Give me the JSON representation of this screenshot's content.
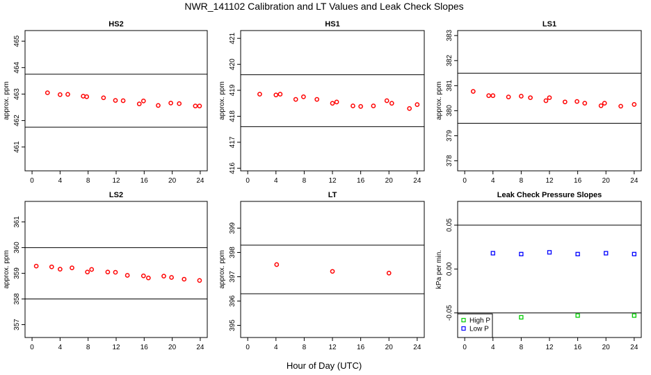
{
  "title": "NWR_141102  Calibration and LT Values and Leak Check Slopes",
  "xlabel": "Hour of Day (UTC)",
  "chart_data": [
    {
      "type": "scatter",
      "title": "HS2",
      "ylabel": "approx. ppm",
      "xlim": [
        -1,
        25
      ],
      "ylim": [
        460.1,
        465.4
      ],
      "yticks": [
        461,
        462,
        463,
        464,
        465
      ],
      "xticks": [
        0,
        4,
        8,
        12,
        16,
        20,
        24
      ],
      "hlines": [
        463.75,
        461.75
      ],
      "series": [
        {
          "color": "#ff0000",
          "marker": "circle",
          "x": [
            2.2,
            4.0,
            5.1,
            7.3,
            7.8,
            10.2,
            11.9,
            13.0,
            15.3,
            15.9,
            18.0,
            19.8,
            21.0,
            23.3,
            23.9
          ],
          "y": [
            463.05,
            462.98,
            462.99,
            462.92,
            462.9,
            462.86,
            462.76,
            462.75,
            462.63,
            462.74,
            462.57,
            462.66,
            462.64,
            462.55,
            462.55
          ]
        }
      ]
    },
    {
      "type": "scatter",
      "title": "HS1",
      "ylabel": "approx. ppm",
      "xlim": [
        -1,
        25
      ],
      "ylim": [
        415.9,
        421.3
      ],
      "yticks": [
        416,
        417,
        418,
        419,
        420,
        421
      ],
      "xticks": [
        0,
        4,
        8,
        12,
        16,
        20,
        24
      ],
      "hlines": [
        419.6,
        417.6
      ],
      "series": [
        {
          "color": "#ff0000",
          "marker": "circle",
          "x": [
            1.7,
            4.0,
            4.6,
            6.8,
            7.9,
            9.8,
            12.0,
            12.6,
            14.9,
            16.0,
            17.8,
            19.7,
            20.4,
            22.9,
            24.0
          ],
          "y": [
            418.85,
            418.82,
            418.85,
            418.65,
            418.75,
            418.65,
            418.5,
            418.55,
            418.4,
            418.38,
            418.4,
            418.6,
            418.5,
            418.3,
            418.45
          ]
        }
      ]
    },
    {
      "type": "scatter",
      "title": "LS1",
      "ylabel": "approx. ppm",
      "xlim": [
        -1,
        25
      ],
      "ylim": [
        377.6,
        383.2
      ],
      "yticks": [
        378,
        379,
        380,
        381,
        382,
        383
      ],
      "xticks": [
        0,
        4,
        8,
        12,
        16,
        20,
        24
      ],
      "hlines": [
        381.5,
        379.5
      ],
      "series": [
        {
          "color": "#ff0000",
          "marker": "circle",
          "x": [
            1.2,
            3.4,
            4.0,
            6.2,
            8.0,
            9.3,
            11.5,
            12.0,
            14.2,
            15.9,
            17.0,
            19.3,
            19.8,
            22.1,
            24.0
          ],
          "y": [
            380.77,
            380.6,
            380.6,
            380.55,
            380.58,
            380.52,
            380.4,
            380.52,
            380.35,
            380.37,
            380.3,
            380.2,
            380.3,
            380.18,
            380.25
          ]
        }
      ]
    },
    {
      "type": "scatter",
      "title": "LS2",
      "ylabel": "approx. ppm",
      "xlim": [
        -1,
        25
      ],
      "ylim": [
        356.5,
        361.8
      ],
      "yticks": [
        357,
        358,
        359,
        360,
        361
      ],
      "xticks": [
        0,
        4,
        8,
        12,
        16,
        20,
        24
      ],
      "hlines": [
        360.0,
        358.0
      ],
      "series": [
        {
          "color": "#ff0000",
          "marker": "circle",
          "x": [
            0.6,
            2.8,
            4.0,
            5.7,
            7.9,
            8.5,
            10.8,
            11.9,
            13.6,
            15.9,
            16.6,
            18.8,
            19.9,
            21.7,
            23.9
          ],
          "y": [
            359.28,
            359.25,
            359.16,
            359.21,
            359.05,
            359.15,
            359.05,
            359.04,
            358.92,
            358.9,
            358.82,
            358.89,
            358.84,
            358.77,
            358.72
          ]
        }
      ]
    },
    {
      "type": "scatter",
      "title": "LT",
      "ylabel": "approx. ppm",
      "xlim": [
        -1,
        25
      ],
      "ylim": [
        394.5,
        400.1
      ],
      "yticks": [
        395,
        396,
        397,
        398,
        399
      ],
      "xticks": [
        0,
        4,
        8,
        12,
        16,
        20,
        24
      ],
      "hlines": [
        398.3,
        396.3
      ],
      "series": [
        {
          "color": "#ff0000",
          "marker": "circle",
          "x": [
            4.1,
            12.0,
            20.0
          ],
          "y": [
            397.5,
            397.22,
            397.15
          ]
        }
      ]
    },
    {
      "type": "scatter",
      "title": "Leak Check Pressure Slopes",
      "ylabel": "kPa per min.",
      "xlim": [
        -1,
        25
      ],
      "ylim": [
        -0.078,
        0.077
      ],
      "yticks": [
        -0.05,
        0.0,
        0.05
      ],
      "ytick_labels": [
        "-0.05",
        "0.00",
        "0.05"
      ],
      "xticks": [
        0,
        4,
        8,
        12,
        16,
        20,
        24
      ],
      "hlines": [
        0.05,
        -0.05
      ],
      "legend": "bottom-left",
      "series": [
        {
          "name": "High P",
          "color": "#00cc00",
          "marker": "square",
          "x": [
            8.0,
            16.0,
            24.0
          ],
          "y": [
            -0.055,
            -0.053,
            -0.053
          ]
        },
        {
          "name": "Low P",
          "color": "#0000ff",
          "marker": "square",
          "x": [
            4.0,
            8.0,
            12.0,
            16.0,
            20.0,
            24.0
          ],
          "y": [
            0.018,
            0.017,
            0.019,
            0.017,
            0.018,
            0.017
          ]
        }
      ]
    }
  ]
}
